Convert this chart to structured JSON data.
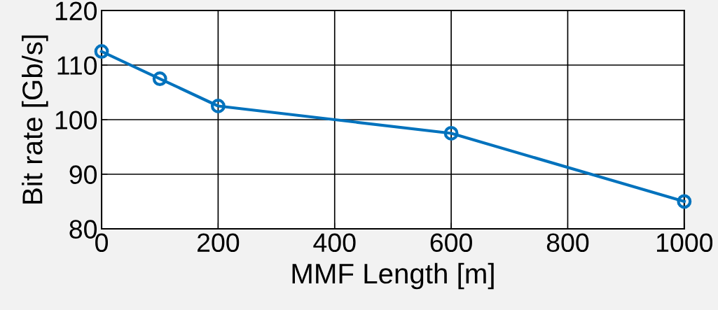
{
  "chart_data": {
    "type": "line",
    "xlabel": "MMF Length [m]",
    "ylabel": "Bit rate [Gb/s]",
    "x": [
      0,
      100,
      200,
      600,
      1000
    ],
    "series": [
      {
        "color": "#0072bd",
        "values": [
          112.5,
          107.5,
          102.5,
          97.5,
          85
        ]
      }
    ],
    "xlim": [
      0,
      1000
    ],
    "xticks": [
      0,
      200,
      400,
      600,
      800,
      1000
    ],
    "ylim": [
      80,
      120
    ],
    "yticks": [
      80,
      90,
      100,
      110,
      120
    ],
    "grid": true,
    "marker": "circle",
    "line_style": "solid"
  }
}
